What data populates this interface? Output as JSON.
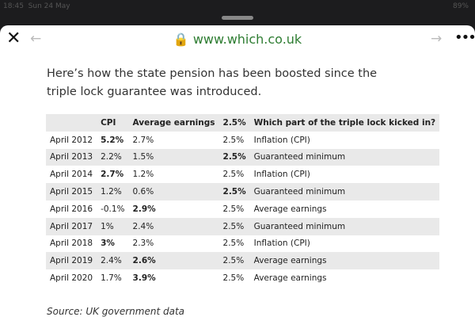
{
  "status_bar": {
    "time": "18:45",
    "date": "Sun 24 May",
    "battery": "89%"
  },
  "browser": {
    "url": "www.which.co.uk"
  },
  "article": {
    "intro": "Here’s how the state pension has been boosted since the triple lock guarantee was introduced.",
    "table": {
      "header": [
        "",
        "CPI",
        "Average earnings",
        "2.5%",
        "Which part of the triple lock kicked in?"
      ],
      "rows": [
        {
          "cells": [
            "April 2012",
            "5.2%",
            "2.7%",
            "2.5%",
            "Inflation (CPI)"
          ],
          "bold": 1
        },
        {
          "cells": [
            "April 2013",
            "2.2%",
            "1.5%",
            "2.5%",
            "Guaranteed minimum"
          ],
          "bold": 3
        },
        {
          "cells": [
            "April 2014",
            "2.7%",
            "1.2%",
            "2.5%",
            "Inflation (CPI)"
          ],
          "bold": 1
        },
        {
          "cells": [
            "April 2015",
            "1.2%",
            "0.6%",
            "2.5%",
            "Guaranteed minimum"
          ],
          "bold": 3
        },
        {
          "cells": [
            "April 2016",
            "-0.1%",
            "2.9%",
            "2.5%",
            "Average earnings"
          ],
          "bold": 2
        },
        {
          "cells": [
            "April 2017",
            "1%",
            "2.4%",
            "2.5%",
            "Guaranteed minimum"
          ],
          "bold": null
        },
        {
          "cells": [
            "April 2018",
            "3%",
            "2.3%",
            "2.5%",
            "Inflation (CPI)"
          ],
          "bold": 1
        },
        {
          "cells": [
            "April 2019",
            "2.4%",
            "2.6%",
            "2.5%",
            "Average earnings"
          ],
          "bold": 2
        },
        {
          "cells": [
            "April 2020",
            "1.7%",
            "3.9%",
            "2.5%",
            "Average earnings"
          ],
          "bold": 2
        }
      ]
    },
    "source": "Source: UK government data"
  }
}
